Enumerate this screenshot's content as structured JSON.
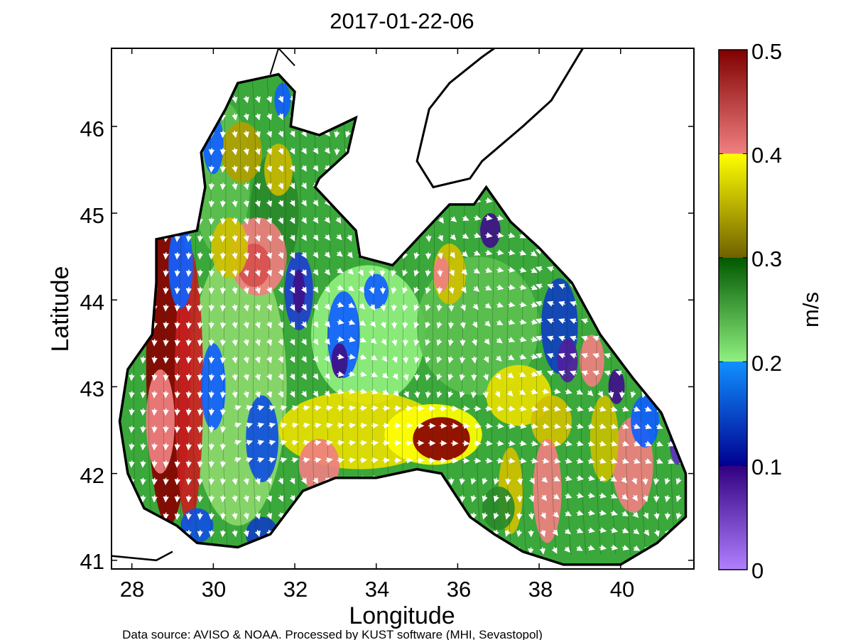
{
  "title": "2017-01-22-06",
  "axes": {
    "xlabel": "Longitude",
    "ylabel": "Latitude",
    "xlim": [
      27.5,
      41.8
    ],
    "ylim": [
      40.9,
      46.9
    ],
    "xticks": [
      "28",
      "30",
      "32",
      "34",
      "36",
      "38",
      "40"
    ],
    "yticks": [
      "41",
      "42",
      "43",
      "44",
      "45",
      "46"
    ]
  },
  "colorbar": {
    "label": "m/s",
    "ticks": [
      "0",
      "0.1",
      "0.2",
      "0.3",
      "0.4",
      "0.5"
    ],
    "range": [
      0,
      0.5
    ],
    "bands": [
      "#a070ff",
      "#2a0080",
      "#0060ff",
      "#8cf070",
      "#006000",
      "#ffff00",
      "#800000"
    ]
  },
  "footer": "Data source: AVISO & NOAA. Processed by KUST software (MHI, Sevastopol)",
  "chart_data": {
    "type": "heatmap",
    "title": "2017-01-22-06",
    "xlabel": "Longitude",
    "ylabel": "Latitude",
    "xlim": [
      27.5,
      41.8
    ],
    "ylim": [
      40.9,
      46.9
    ],
    "colorbar_label": "m/s",
    "value_range": [
      0,
      0.5
    ],
    "field": "surface current speed with direction arrows",
    "grid": false
  }
}
